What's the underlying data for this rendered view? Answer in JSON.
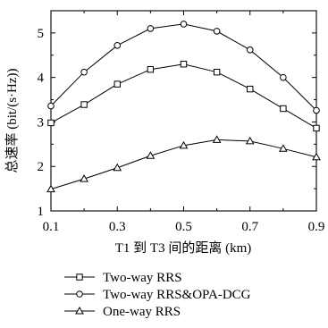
{
  "chart_data": {
    "type": "line",
    "xlabel": "T1 到 T3 间的距离 (km)",
    "ylabel": "总速率 (bit/(s·Hz))",
    "xlim": [
      0.1,
      0.9
    ],
    "ylim": [
      1,
      5.5
    ],
    "x_ticks": [
      "0.1",
      "0.3",
      "0.5",
      "0.7",
      "0.9"
    ],
    "y_ticks": [
      "1",
      "2",
      "3",
      "4",
      "5"
    ],
    "x": [
      0.1,
      0.2,
      0.3,
      0.4,
      0.5,
      0.6,
      0.7,
      0.8,
      0.9
    ],
    "grid": false,
    "legend_position": "bottom-left, outside plot",
    "series": [
      {
        "name": "Two-way RRS",
        "marker": "square",
        "values": [
          2.98,
          3.39,
          3.85,
          4.18,
          4.3,
          4.12,
          3.74,
          3.3,
          2.86
        ]
      },
      {
        "name": "Two-way RRS&OPA-DCG",
        "marker": "circle",
        "values": [
          3.36,
          4.12,
          4.72,
          5.1,
          5.2,
          5.04,
          4.62,
          4.0,
          3.26
        ]
      },
      {
        "name": "One-way RRS",
        "marker": "triangle",
        "values": [
          1.49,
          1.72,
          1.97,
          2.24,
          2.47,
          2.6,
          2.57,
          2.4,
          2.21
        ]
      }
    ]
  }
}
